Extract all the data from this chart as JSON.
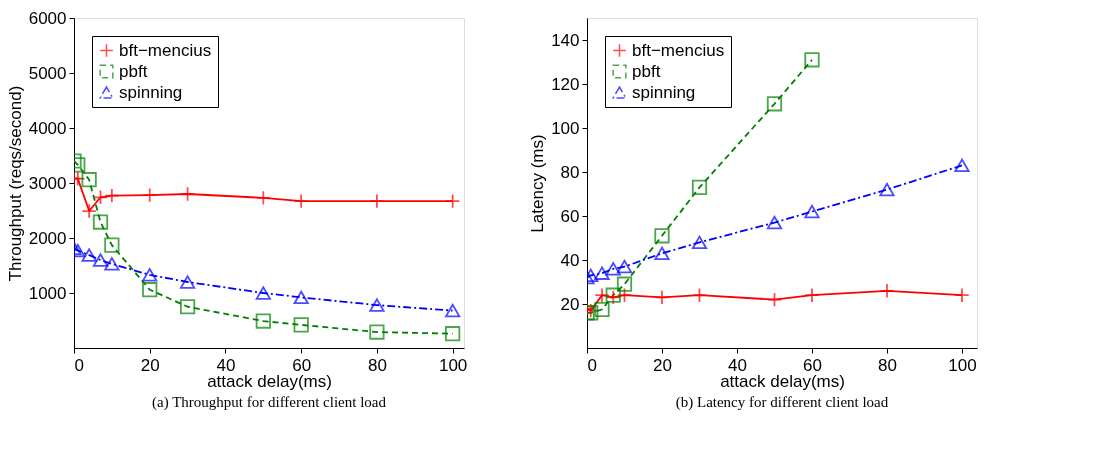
{
  "chart_data": [
    {
      "type": "line",
      "xlabel": "attack delay(ms)",
      "ylabel": "Throughput (reqs/second)",
      "x": [
        0,
        1,
        4,
        7,
        10,
        20,
        30,
        50,
        60,
        80,
        100
      ],
      "xlim": [
        0,
        103
      ],
      "xticks": [
        0,
        20,
        40,
        60,
        80,
        100
      ],
      "ylim": [
        0,
        6000
      ],
      "yticks": [
        1000,
        2000,
        3000,
        4000,
        5000,
        6000
      ],
      "legend": "top left",
      "grid": false,
      "annotations": [
        "(a) Throughput for different client load"
      ],
      "series": [
        {
          "name": "bft−mencius",
          "color": "#ff0000",
          "marker": "cross",
          "line_style": "solid",
          "values": [
            3080,
            3080,
            2490,
            2740,
            2770,
            2780,
            2800,
            2730,
            2670,
            2670,
            2670
          ]
        },
        {
          "name": "pbft",
          "color": "#008000",
          "marker": "square",
          "line_style": "dashed",
          "values": [
            3400,
            3330,
            3060,
            2290,
            1870,
            1060,
            750,
            490,
            420,
            290,
            260
          ]
        },
        {
          "name": "spinning",
          "color": "#0000ff",
          "marker": "triangle",
          "line_style": "dashdot",
          "values": [
            1810,
            1770,
            1690,
            1600,
            1530,
            1330,
            1200,
            1000,
            920,
            780,
            680
          ]
        }
      ]
    },
    {
      "type": "line",
      "xlabel": "attack delay(ms)",
      "ylabel": "Latency (ms)",
      "x": [
        0,
        1,
        4,
        7,
        10,
        20,
        30,
        50,
        60,
        80,
        100
      ],
      "xlim": [
        0,
        104
      ],
      "xticks": [
        0,
        20,
        40,
        60,
        80,
        100
      ],
      "ylim": [
        0,
        150
      ],
      "yticks": [
        20,
        40,
        60,
        80,
        100,
        120,
        140
      ],
      "legend": "top left",
      "grid": false,
      "annotations": [
        "(b) Latency for different client load"
      ],
      "series": [
        {
          "name": "bft−mencius",
          "color": "#ff0000",
          "marker": "cross",
          "line_style": "solid",
          "values": [
            18,
            17,
            24,
            23,
            24,
            23,
            24,
            22,
            24,
            26,
            24
          ]
        },
        {
          "name": "pbft",
          "color": "#008000",
          "marker": "square",
          "line_style": "dashed",
          "values": [
            16,
            16,
            17.5,
            24,
            29,
            51,
            73,
            111,
            131,
            null,
            null
          ]
        },
        {
          "name": "spinning",
          "color": "#0000ff",
          "marker": "triangle",
          "line_style": "dashdot",
          "values": [
            32,
            33,
            34,
            36,
            37,
            43,
            48,
            57,
            62,
            72,
            83
          ]
        }
      ]
    }
  ]
}
